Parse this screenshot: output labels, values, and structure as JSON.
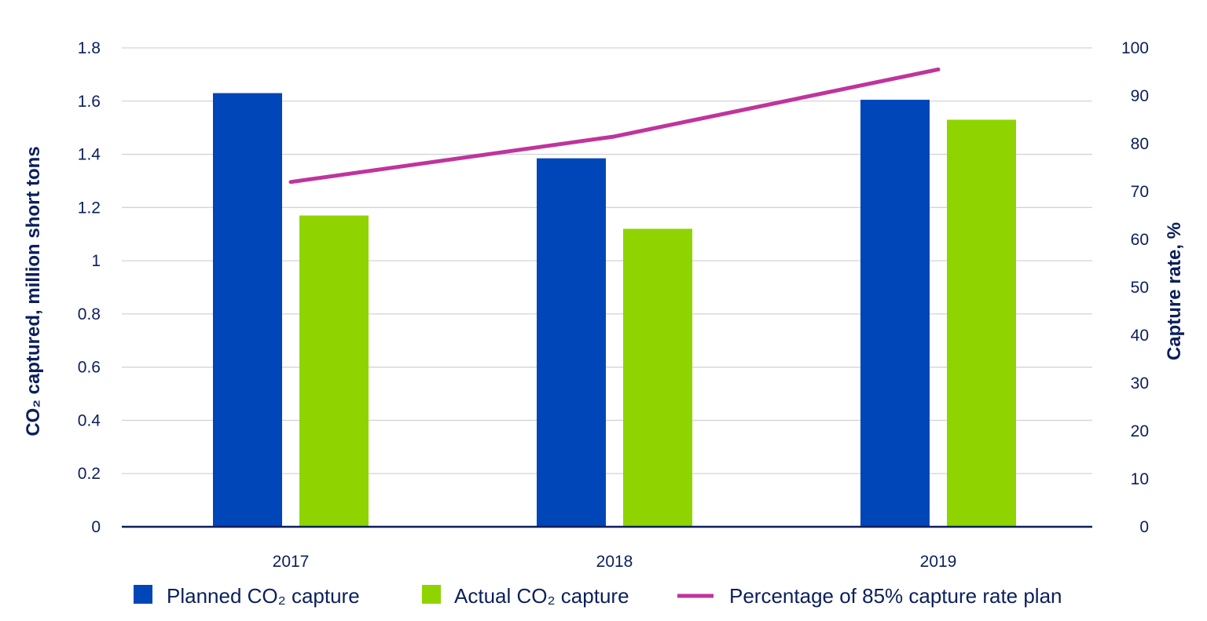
{
  "chart_data": {
    "type": "bar",
    "categories": [
      "2017",
      "2018",
      "2019"
    ],
    "series": [
      {
        "name": "Planned CO₂ capture",
        "type": "bar",
        "axis": "left",
        "color": "#0046b8",
        "values": [
          1.63,
          1.385,
          1.605
        ]
      },
      {
        "name": "Actual CO₂ capture",
        "type": "bar",
        "axis": "left",
        "color": "#8fd400",
        "values": [
          1.17,
          1.12,
          1.53
        ]
      },
      {
        "name": "Percentage of 85% capture rate plan",
        "type": "line",
        "axis": "right",
        "color": "#c0349c",
        "values": [
          72,
          81.5,
          95.5
        ]
      }
    ],
    "ylabel": "CO₂ captured, million short tons",
    "y2label": "Capture rate, %",
    "ylim": [
      0,
      1.8
    ],
    "y2lim": [
      0,
      100
    ],
    "yticks": [
      "0",
      "0.2",
      "0.4",
      "0.6",
      "0.8",
      "1",
      "1.2",
      "1.4",
      "1.6",
      "1.8"
    ],
    "y2ticks": [
      "0",
      "10",
      "20",
      "30",
      "40",
      "50",
      "60",
      "70",
      "80",
      "90",
      "100"
    ],
    "grid": true,
    "legend_position": "bottom"
  }
}
